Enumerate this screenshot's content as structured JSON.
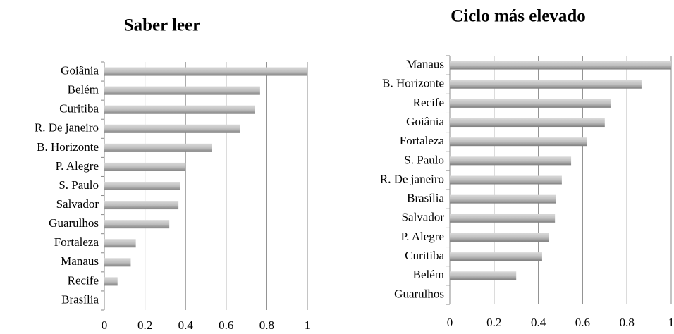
{
  "chart_data": [
    {
      "type": "bar",
      "orientation": "horizontal",
      "title": "Saber leer",
      "categories": [
        "Goiânia",
        "Belém",
        "Curitiba",
        "R. De janeiro",
        "B. Horizonte",
        "P. Alegre",
        "S. Paulo",
        "Salvador",
        "Guarulhos",
        "Fortaleza",
        "Manaus",
        "Recife",
        "Brasília"
      ],
      "values": [
        1.0,
        0.767,
        0.743,
        0.67,
        0.53,
        0.4,
        0.375,
        0.365,
        0.32,
        0.155,
        0.13,
        0.065,
        0
      ],
      "color": "#a6a6a6",
      "xlim": [
        0,
        1
      ],
      "xticks": [
        0,
        0.2,
        0.4,
        0.6,
        0.8,
        1
      ],
      "grid": true
    },
    {
      "type": "bar",
      "orientation": "horizontal",
      "title": "Ciclo más elevado",
      "categories": [
        "Manaus",
        "B. Horizonte",
        "Recife",
        "Goiânia",
        "Fortaleza",
        "S. Paulo",
        "R. De janeiro",
        "Brasília",
        "Salvador",
        "P. Alegre",
        "Curitiba",
        "Belém",
        "Guarulhos"
      ],
      "values": [
        1.0,
        0.866,
        0.726,
        0.7,
        0.618,
        0.548,
        0.506,
        0.478,
        0.475,
        0.446,
        0.417,
        0.3,
        0
      ],
      "color": "#a6a6a6",
      "xlim": [
        0,
        1
      ],
      "xticks": [
        0,
        0.2,
        0.4,
        0.6,
        0.8,
        1
      ],
      "grid": true
    }
  ]
}
